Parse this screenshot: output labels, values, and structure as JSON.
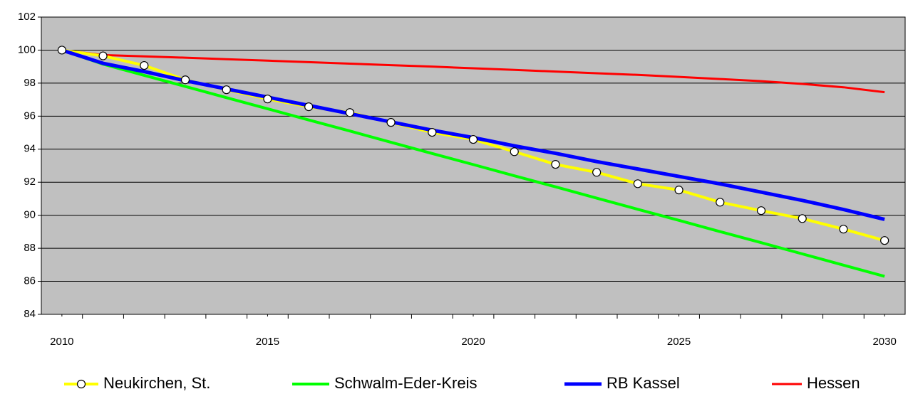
{
  "chart_data": {
    "type": "line",
    "x": [
      2010,
      2011,
      2012,
      2013,
      2014,
      2015,
      2016,
      2017,
      2018,
      2019,
      2020,
      2021,
      2022,
      2023,
      2024,
      2025,
      2026,
      2027,
      2028,
      2029,
      2030
    ],
    "xlim": [
      2009.5,
      2030.5
    ],
    "xticks": [
      2010,
      2015,
      2020,
      2025,
      2030
    ],
    "ylim": [
      84,
      102
    ],
    "yticks": [
      84,
      86,
      88,
      90,
      92,
      94,
      96,
      98,
      100,
      102
    ],
    "grid": true,
    "legend": "bottom",
    "series": [
      {
        "name": "Neukirchen, St.",
        "color": "#ffff00",
        "marker": "circle",
        "values": [
          100,
          99.65,
          99.07,
          98.2,
          97.6,
          97.04,
          96.57,
          96.22,
          95.62,
          95.02,
          94.59,
          93.85,
          93.08,
          92.6,
          91.91,
          91.53,
          90.79,
          90.28,
          89.8,
          89.16,
          88.47
        ]
      },
      {
        "name": "Schwalm-Eder-Kreis",
        "color": "#00ff00",
        "values": [
          100,
          99.15,
          98.47,
          97.8,
          97.12,
          96.45,
          95.77,
          95.1,
          94.42,
          93.74,
          93.07,
          92.39,
          91.72,
          91.04,
          90.36,
          89.69,
          89.01,
          88.34,
          87.66,
          86.98,
          86.3
        ]
      },
      {
        "name": "RB Kassel",
        "color": "#0000ff",
        "values": [
          100,
          99.2,
          98.7,
          98.15,
          97.65,
          97.15,
          96.65,
          96.15,
          95.65,
          95.15,
          94.7,
          94.2,
          93.75,
          93.25,
          92.8,
          92.35,
          91.9,
          91.4,
          90.9,
          90.35,
          89.75
        ]
      },
      {
        "name": "Hessen",
        "color": "#ff0000",
        "values": [
          100,
          99.7,
          99.62,
          99.54,
          99.45,
          99.36,
          99.27,
          99.18,
          99.09,
          99.0,
          98.9,
          98.8,
          98.7,
          98.6,
          98.5,
          98.38,
          98.25,
          98.12,
          97.95,
          97.75,
          97.45
        ]
      }
    ]
  }
}
